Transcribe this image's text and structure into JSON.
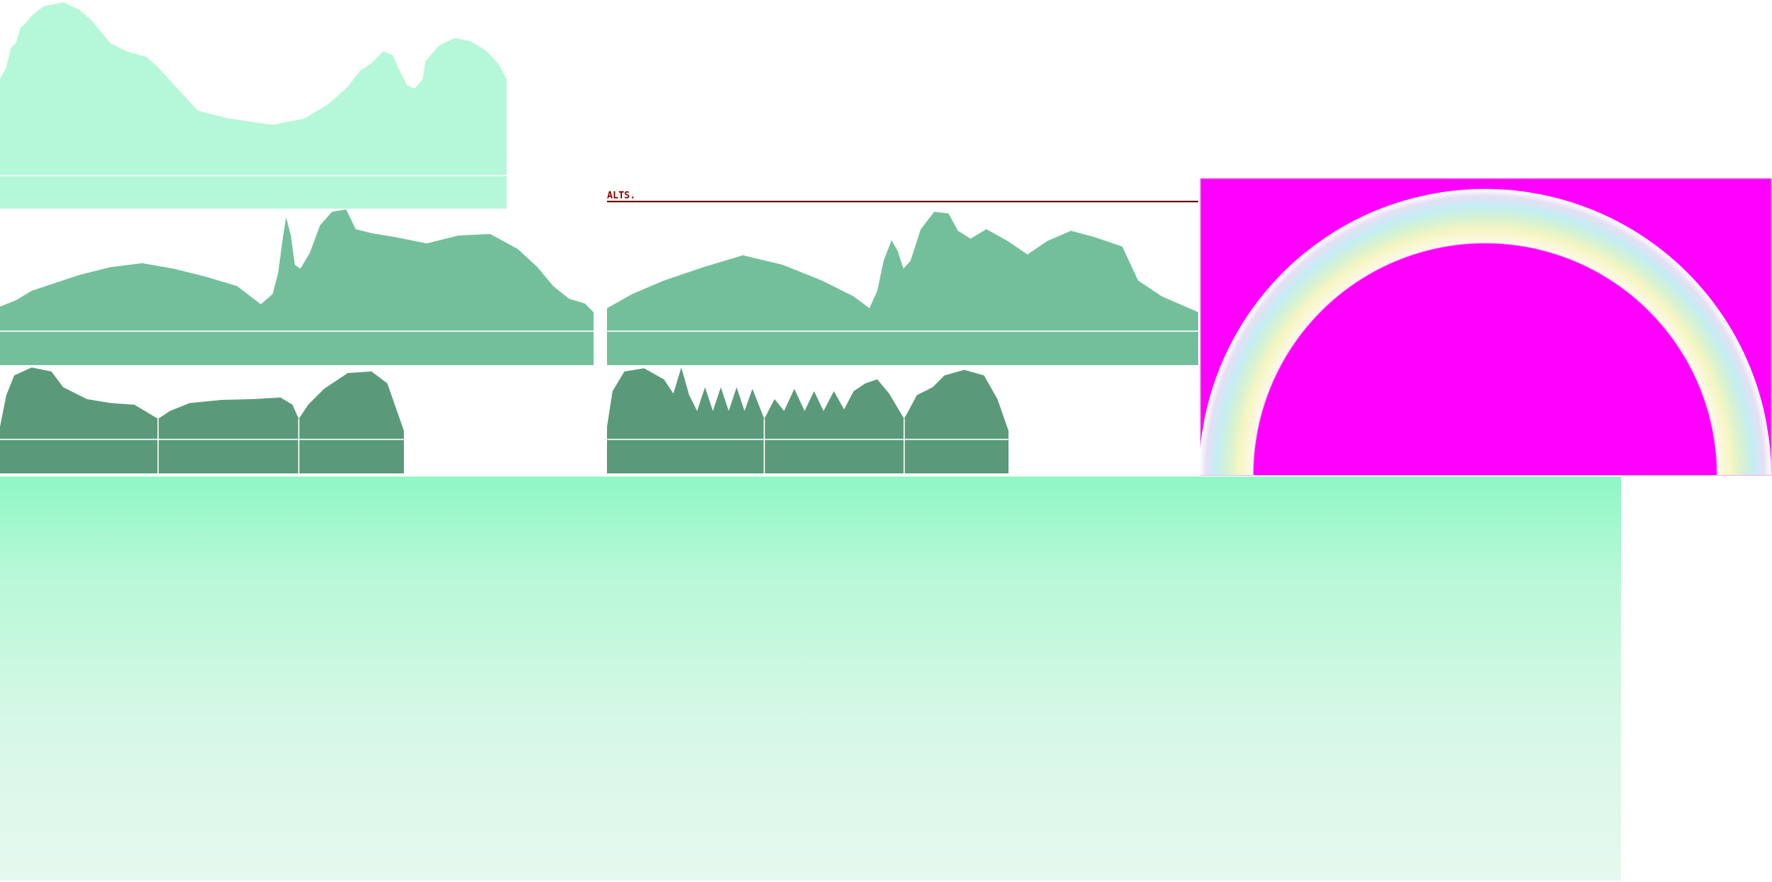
{
  "label": "ALTS."
}
